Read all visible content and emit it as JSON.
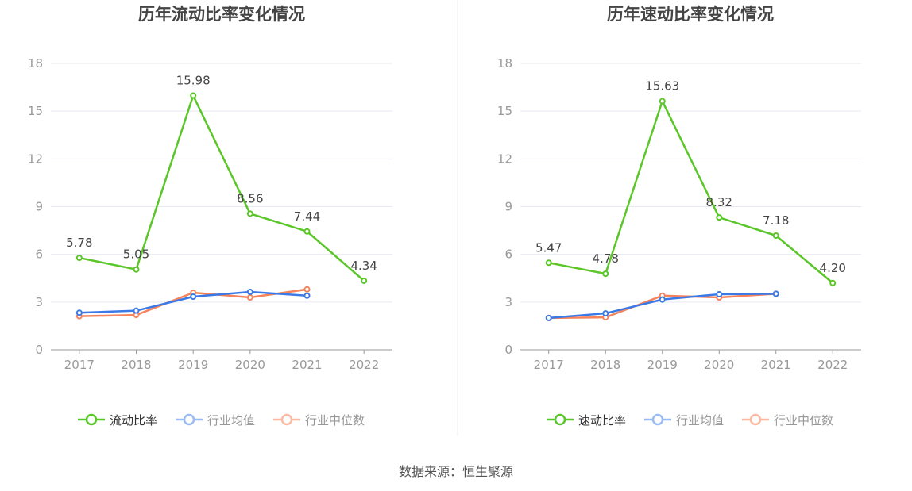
{
  "source": "数据来源：恒生聚源",
  "chart_data": [
    {
      "type": "line",
      "title": "历年流动比率变化情况",
      "categories": [
        "2017",
        "2018",
        "2019",
        "2020",
        "2021",
        "2022"
      ],
      "ylim": [
        0,
        18
      ],
      "yticks": [
        0,
        3,
        6,
        9,
        12,
        15,
        18
      ],
      "legend_position": "bottom",
      "series": [
        {
          "name": "流动比率",
          "color": "#5ac628",
          "values": [
            5.78,
            5.05,
            15.98,
            8.56,
            7.44,
            4.34
          ],
          "labels": [
            "5.78",
            "5.05",
            "15.98",
            "8.56",
            "7.44",
            "4.34"
          ]
        },
        {
          "name": "行业均值",
          "color": "#3b79e6",
          "values": [
            2.33,
            2.46,
            3.34,
            3.64,
            3.4,
            null
          ]
        },
        {
          "name": "行业中位数",
          "color": "#f5845c",
          "values": [
            2.11,
            2.19,
            3.59,
            3.29,
            3.8,
            null
          ]
        }
      ]
    },
    {
      "type": "line",
      "title": "历年速动比率变化情况",
      "categories": [
        "2017",
        "2018",
        "2019",
        "2020",
        "2021",
        "2022"
      ],
      "ylim": [
        0,
        18
      ],
      "yticks": [
        0,
        3,
        6,
        9,
        12,
        15,
        18
      ],
      "legend_position": "bottom",
      "series": [
        {
          "name": "速动比率",
          "color": "#5ac628",
          "values": [
            5.47,
            4.78,
            15.63,
            8.32,
            7.18,
            4.2
          ],
          "labels": [
            "5.47",
            "4.78",
            "15.63",
            "8.32",
            "7.18",
            "4.20"
          ]
        },
        {
          "name": "行业均值",
          "color": "#3b79e6",
          "values": [
            2.0,
            2.29,
            3.16,
            3.49,
            3.52,
            null
          ]
        },
        {
          "name": "行业中位数",
          "color": "#f5845c",
          "values": [
            2.0,
            2.04,
            3.4,
            3.29,
            3.52,
            null
          ]
        }
      ]
    }
  ]
}
